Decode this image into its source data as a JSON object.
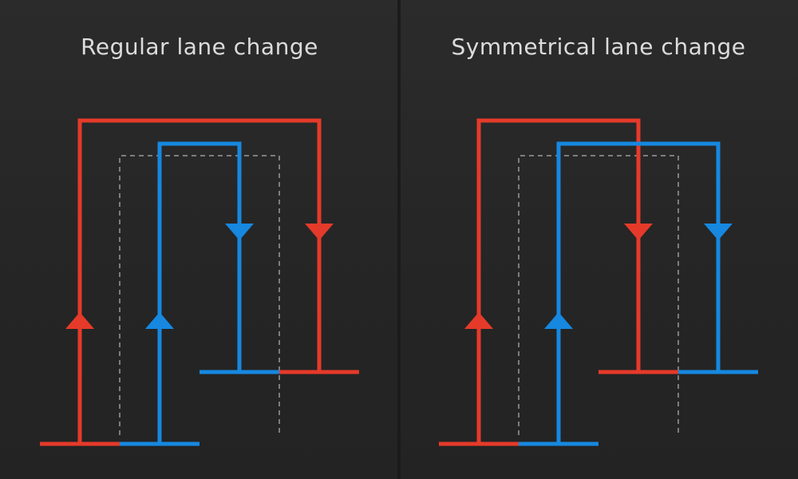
{
  "colors": {
    "background": "#262626",
    "route_red": "#e53a2a",
    "route_blue": "#1688e0",
    "dashed": "#9a9a9a",
    "title": "#dcdcdc"
  },
  "panels": [
    {
      "title": "Regular lane change"
    },
    {
      "title": "Symmetrical lane change"
    }
  ]
}
